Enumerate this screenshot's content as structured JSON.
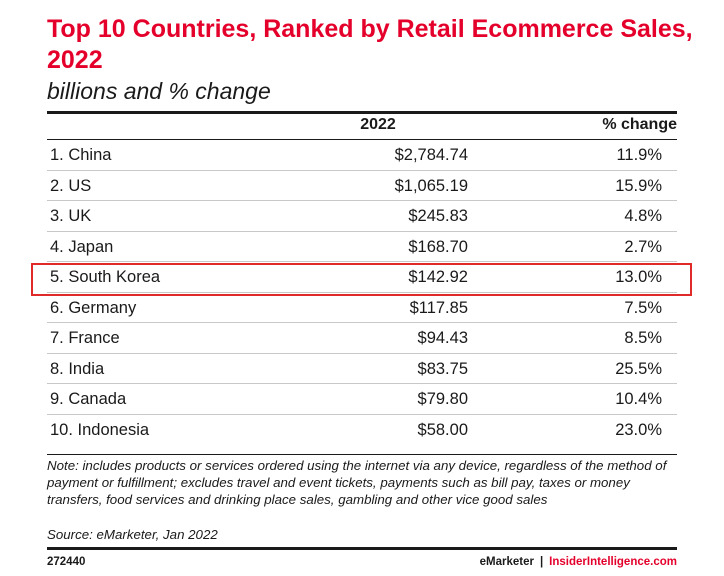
{
  "chart_data": {
    "type": "table",
    "title": "Top 10 Countries, Ranked by Retail Ecommerce Sales, 2022",
    "subtitle": "billions and % change",
    "columns": [
      "2022",
      "% change"
    ],
    "rows": [
      {
        "name": "1. China",
        "value": "$2,784.74",
        "change": "11.9%"
      },
      {
        "name": "2. US",
        "value": "$1,065.19",
        "change": "15.9%"
      },
      {
        "name": "3. UK",
        "value": "$245.83",
        "change": "4.8%"
      },
      {
        "name": "4. Japan",
        "value": "$168.70",
        "change": "2.7%"
      },
      {
        "name": "5. South Korea",
        "value": "$142.92",
        "change": "13.0%"
      },
      {
        "name": "6. Germany",
        "value": "$117.85",
        "change": "7.5%"
      },
      {
        "name": "7. France",
        "value": "$94.43",
        "change": "8.5%"
      },
      {
        "name": "8. India",
        "value": "$83.75",
        "change": "25.5%"
      },
      {
        "name": "9. Canada",
        "value": "$79.80",
        "change": "10.4%"
      },
      {
        "name": "10. Indonesia",
        "value": "$58.00",
        "change": "23.0%"
      }
    ],
    "highlighted_row": 4,
    "note": "Note: includes products or services ordered using the internet via any device, regardless of the method of payment or fulfillment; excludes travel and event tickets, payments such as bill pay, taxes or money transfers, food services and drinking place sales, gambling and other vice good sales",
    "source": "Source: eMarketer, Jan 2022"
  },
  "footer": {
    "id": "272440",
    "brand": "eMarketer",
    "separator": "|",
    "brand2": "InsiderIntelligence.com"
  },
  "colors": {
    "accent": "#e4002b",
    "highlight_border": "#e02a2a"
  }
}
